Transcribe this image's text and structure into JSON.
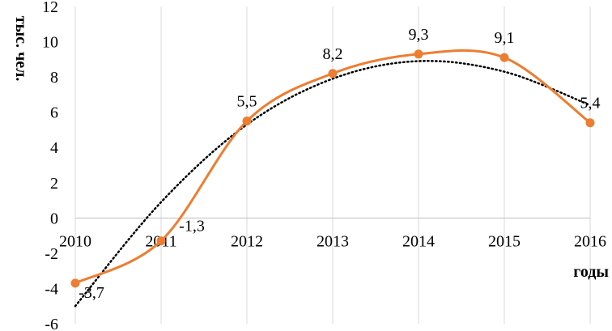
{
  "chart_data": {
    "type": "line",
    "title": "",
    "ylabel": "тыс. чел.",
    "xlabel": "годы",
    "x": [
      2010,
      2011,
      2012,
      2013,
      2014,
      2015,
      2016
    ],
    "x_tick_labels": [
      "2010",
      "2011",
      "2012",
      "2013",
      "2014",
      "2015",
      "2016"
    ],
    "ylim": [
      -6,
      12
    ],
    "y_ticks": [
      -6,
      -4,
      -2,
      0,
      2,
      4,
      6,
      8,
      10,
      12
    ],
    "y_tick_labels": [
      "-6",
      "-4",
      "-2",
      "0",
      "2",
      "4",
      "6",
      "8",
      "10",
      "12"
    ],
    "grid": "vertical",
    "legend": "none",
    "series": [
      {
        "values": [
          -3.7,
          -1.3,
          5.5,
          8.2,
          9.3,
          9.1,
          5.4
        ],
        "data_labels": [
          "-3,7",
          "-1,3",
          "5,5",
          "8,2",
          "9,3",
          "9,1",
          "5,4"
        ],
        "color": "#ED7D31",
        "smooth": true,
        "markers": true
      }
    ],
    "trendline": {
      "type": "polynomial",
      "style": "dotted",
      "color": "#000000",
      "values": [
        -5.0,
        0.9,
        5.3,
        7.9,
        8.9,
        8.3,
        6.4
      ]
    }
  }
}
